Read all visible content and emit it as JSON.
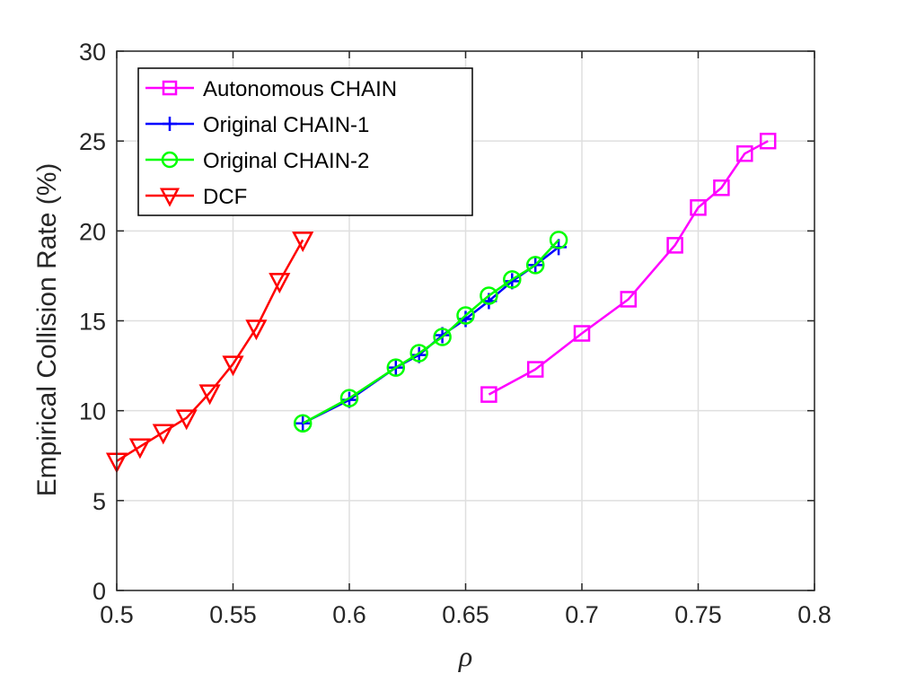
{
  "chart_data": {
    "type": "line",
    "title": "",
    "xlabel": "ρ",
    "ylabel": "Empirical Collision Rate (%)",
    "xlim": [
      0.5,
      0.8
    ],
    "ylim": [
      0,
      30
    ],
    "xticks": [
      "0.5",
      "0.55",
      "0.6",
      "0.65",
      "0.7",
      "0.75",
      "0.8"
    ],
    "yticks": [
      "0",
      "5",
      "10",
      "15",
      "20",
      "25",
      "30"
    ],
    "grid": true,
    "legend_position": "top-left",
    "series": [
      {
        "name": "Autonomous CHAIN",
        "color": "#ff00ff",
        "marker": "square",
        "x": [
          0.66,
          0.68,
          0.7,
          0.72,
          0.74,
          0.75,
          0.76,
          0.77,
          0.78
        ],
        "y": [
          10.9,
          12.3,
          14.3,
          16.2,
          19.2,
          21.3,
          22.4,
          24.3,
          25.0
        ]
      },
      {
        "name": "Original CHAIN-1",
        "color": "#0000ff",
        "marker": "plus",
        "x": [
          0.58,
          0.6,
          0.62,
          0.63,
          0.64,
          0.65,
          0.66,
          0.67,
          0.68,
          0.69
        ],
        "y": [
          9.3,
          10.6,
          12.4,
          13.1,
          14.2,
          15.1,
          16.1,
          17.2,
          18.1,
          19.1
        ]
      },
      {
        "name": "Original CHAIN-2",
        "color": "#00ff00",
        "marker": "circle",
        "x": [
          0.58,
          0.6,
          0.62,
          0.63,
          0.64,
          0.65,
          0.66,
          0.67,
          0.68,
          0.69
        ],
        "y": [
          9.3,
          10.7,
          12.4,
          13.2,
          14.1,
          15.3,
          16.4,
          17.3,
          18.1,
          19.5
        ]
      },
      {
        "name": "DCF",
        "color": "#ff0000",
        "marker": "triangle-down",
        "x": [
          0.5,
          0.51,
          0.52,
          0.53,
          0.54,
          0.55,
          0.56,
          0.57,
          0.58
        ],
        "y": [
          7.2,
          8.0,
          8.8,
          9.6,
          11.0,
          12.6,
          14.6,
          17.2,
          19.5
        ]
      }
    ]
  }
}
